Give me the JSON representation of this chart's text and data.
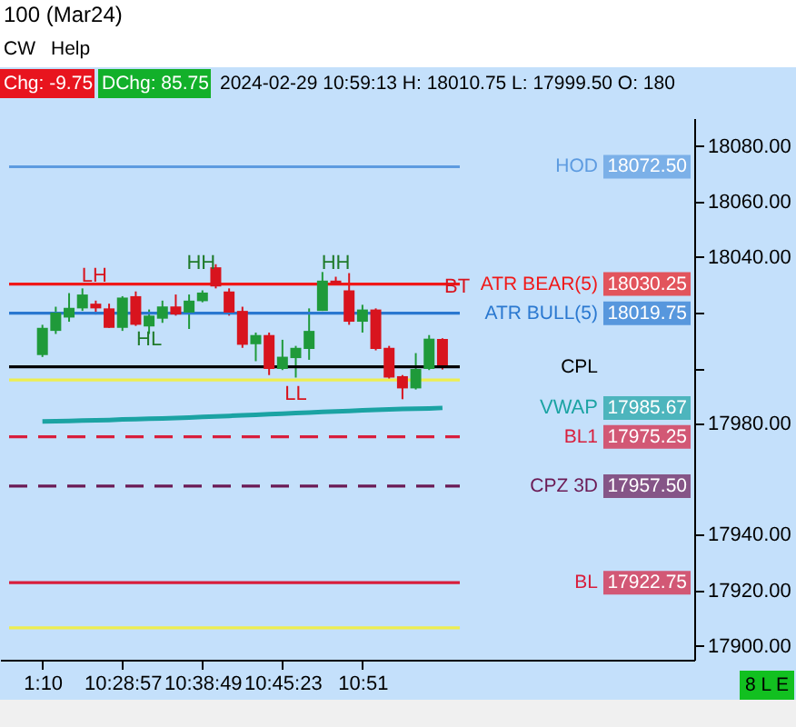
{
  "chart_data": {
    "type": "candlestick",
    "title": "100 (Mar24)",
    "categories": [
      "1:10",
      null,
      null,
      null,
      null,
      null,
      "10:28:57",
      null,
      null,
      null,
      null,
      null,
      "10:38:49",
      null,
      null,
      null,
      null,
      null,
      "10:45:23",
      null,
      null,
      null,
      null,
      null,
      "10:51",
      null,
      null,
      null,
      null,
      null,
      null
    ],
    "ohlc": [
      [
        18004.7,
        18015.6,
        18004.0,
        18014.5
      ],
      [
        18013.4,
        18022.1,
        18012.3,
        18020.0
      ],
      [
        18018.2,
        18027.0,
        18016.7,
        18021.7
      ],
      [
        18021.5,
        18028.7,
        18020.6,
        18026.5
      ],
      [
        18023.2,
        18024.3,
        18019.3,
        18021.5
      ],
      [
        18021.5,
        18023.2,
        18014.5,
        18014.5
      ],
      [
        18014.5,
        18025.9,
        18013.4,
        18025.4
      ],
      [
        18025.9,
        18027.6,
        18015.2,
        18015.6
      ],
      [
        18015.0,
        18021.1,
        18012.3,
        18018.9
      ],
      [
        18017.8,
        18024.3,
        18016.3,
        18022.2
      ],
      [
        18022.2,
        18026.5,
        18018.9,
        18019.3
      ],
      [
        18020.0,
        18026.5,
        18014.1,
        18024.3
      ],
      [
        18024.1,
        18028.0,
        18023.7,
        18027.2
      ],
      [
        18036.3,
        18037.4,
        18028.7,
        18029.4
      ],
      [
        18027.6,
        18028.7,
        18018.9,
        18020.0
      ],
      [
        18020.6,
        18022.1,
        18007.3,
        18008.4
      ],
      [
        18008.6,
        18012.8,
        18002.5,
        18011.9
      ],
      [
        18011.9,
        18012.8,
        17997.5,
        17999.7
      ],
      [
        17999.7,
        18010.2,
        17999.3,
        18004.1
      ],
      [
        18003.6,
        18008.0,
        17996.6,
        18007.3
      ],
      [
        18006.9,
        18021.5,
        18003.0,
        18013.4
      ],
      [
        18020.6,
        18034.6,
        18020.6,
        18031.5
      ],
      [
        18031.5,
        18032.9,
        18029.8,
        18030.2
      ],
      [
        18028.0,
        18034.2,
        18015.6,
        18016.7
      ],
      [
        18016.7,
        18022.8,
        18012.8,
        18021.1
      ],
      [
        18021.1,
        18021.5,
        18006.4,
        18006.9
      ],
      [
        18007.3,
        18008.0,
        17996.0,
        17996.6
      ],
      [
        17997.1,
        17997.5,
        17988.8,
        17992.7
      ],
      [
        17992.7,
        18005.4,
        17992.3,
        17999.7
      ],
      [
        17999.7,
        18011.9,
        17999.3,
        18010.6
      ],
      [
        18010.5,
        18010.75,
        17999.5,
        18001.0
      ]
    ],
    "colors": [
      "#1f9a3a",
      "#1f9a3a",
      "#1f9a3a",
      "#1f9a3a",
      "#d8141e",
      "#d8141e",
      "#1f9a3a",
      "#d8141e",
      "#1f9a3a",
      "#1f9a3a",
      "#d8141e",
      "#1f9a3a",
      "#1f9a3a",
      "#d8141e",
      "#d8141e",
      "#d8141e",
      "#1f9a3a",
      "#d8141e",
      "#1f9a3a",
      "#1f9a3a",
      "#1f9a3a",
      "#1f9a3a",
      "#d8141e",
      "#d8141e",
      "#1f9a3a",
      "#d8141e",
      "#d8141e",
      "#d8141e",
      "#1f9a3a",
      "#1f9a3a",
      "#d8141e"
    ],
    "series": [
      {
        "name": "VWAP",
        "type": "line",
        "color": "#1ba3a3",
        "values": [
          17980.8,
          17980.9,
          17981.0,
          17981.1,
          17981.2,
          17981.3,
          17981.5,
          17981.6,
          17981.8,
          17981.9,
          17982.0,
          17982.2,
          17982.4,
          17982.6,
          17982.8,
          17983.0,
          17983.2,
          17983.4,
          17983.6,
          17983.8,
          17984.0,
          17984.2,
          17984.4,
          17984.6,
          17984.8,
          17985.0,
          17985.1,
          17985.3,
          17985.4,
          17985.5,
          17985.67
        ]
      }
    ],
    "ylim": [
      17895,
      18090
    ],
    "yticks": [
      {
        "value": 17900,
        "label": "17900.00"
      },
      {
        "value": 17920,
        "label": "17920.00"
      },
      {
        "value": 17940,
        "label": "17940.00"
      },
      {
        "value": 17980,
        "label": "17980.00"
      },
      {
        "value": 18000,
        "label": null
      },
      {
        "value": 18020,
        "label": null
      },
      {
        "value": 18040,
        "label": "18040.00"
      },
      {
        "value": 18060,
        "label": "18060.00"
      },
      {
        "value": 18080,
        "label": "18080.00"
      }
    ],
    "ref_lines": [
      {
        "axis": "y",
        "value": 18072.5,
        "label": "HOD",
        "color": "#5d9be0",
        "line_style": "solid"
      },
      {
        "axis": "y",
        "value": 18030.25,
        "label": "ATR BEAR(5)",
        "color": "#f01818",
        "line_style": "solid"
      },
      {
        "axis": "y",
        "value": 18019.75,
        "label": "ATR BULL(5)",
        "color": "#2a78d0",
        "line_style": "solid"
      },
      {
        "axis": "y",
        "value": 18000.5,
        "label": "CPL",
        "color": "#000000",
        "line_style": "solid"
      },
      {
        "axis": "y",
        "value": 17995.75,
        "color": "#eeee50",
        "line_style": "solid"
      },
      {
        "axis": "y",
        "value": 17975.25,
        "label": "BL1",
        "color": "#d81e3c",
        "line_style": "dashed"
      },
      {
        "axis": "y",
        "value": 17957.5,
        "label": "CPZ 3D",
        "color": "#6b1a55",
        "line_style": "dashed"
      },
      {
        "axis": "y",
        "value": 17922.75,
        "label": "BL",
        "color": "#d81e3c",
        "line_style": "solid"
      },
      {
        "axis": "y",
        "value": 17906.5,
        "color": "#eeee50",
        "line_style": "solid"
      }
    ],
    "annotations": [
      "HH",
      "HH",
      "HL",
      "LL",
      "LH",
      "BT",
      "CW",
      "Help",
      "Chg: -9.75",
      "DChg: 85.75",
      "2024-02-29 10:59:13 H: 18010.75 L: 17999.50 O: 180",
      "8 L E",
      "18072.50",
      "18030.25",
      "18019.75",
      "17985.67",
      "17975.25",
      "17957.50",
      "17922.75"
    ]
  }
}
